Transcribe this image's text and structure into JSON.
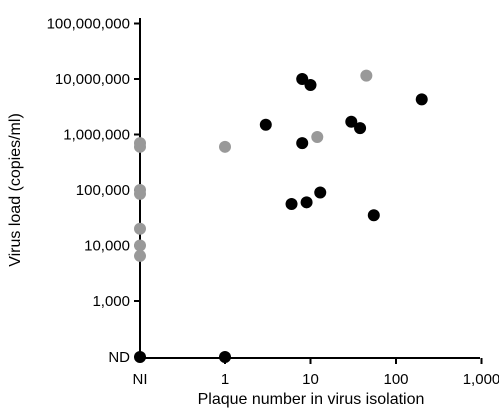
{
  "chart_data": {
    "type": "scatter",
    "xlabel": "Plaque number in virus isolation",
    "ylabel": "Virus load (copies/ml)",
    "x_scale": "log",
    "y_scale": "log",
    "x_ticks": [
      {
        "label": "NI",
        "value": "NI"
      },
      {
        "label": "1",
        "value": 1
      },
      {
        "label": "10",
        "value": 10
      },
      {
        "label": "100",
        "value": 100
      },
      {
        "label": "1,000",
        "value": 1000
      }
    ],
    "y_ticks": [
      {
        "label": "ND",
        "value": "ND"
      },
      {
        "label": "1,000",
        "value": 1000
      },
      {
        "label": "10,000",
        "value": 10000
      },
      {
        "label": "100,000",
        "value": 100000
      },
      {
        "label": "1,000,000",
        "value": 1000000
      },
      {
        "label": "10,000,000",
        "value": 10000000
      },
      {
        "label": "100,000,000",
        "value": 100000000
      }
    ],
    "colors": {
      "black": "#000000",
      "gray": "#999999"
    },
    "series": [
      {
        "color": "black",
        "points": [
          {
            "x": "NI",
            "y": "ND"
          },
          {
            "x": 1,
            "y": "ND"
          },
          {
            "x": 3,
            "y": 1500000
          },
          {
            "x": 6,
            "y": 56000
          },
          {
            "x": 8,
            "y": 10000000
          },
          {
            "x": 8,
            "y": 700000
          },
          {
            "x": 9,
            "y": 60000
          },
          {
            "x": 10,
            "y": 7800000
          },
          {
            "x": 13,
            "y": 90000
          },
          {
            "x": 30,
            "y": 1700000
          },
          {
            "x": 38,
            "y": 1300000
          },
          {
            "x": 55,
            "y": 35000
          },
          {
            "x": 200,
            "y": 4300000
          }
        ]
      },
      {
        "color": "gray",
        "points": [
          {
            "x": "NI",
            "y": 700000
          },
          {
            "x": "NI",
            "y": 600000
          },
          {
            "x": "NI",
            "y": 100000
          },
          {
            "x": "NI",
            "y": 85000
          },
          {
            "x": "NI",
            "y": 20000
          },
          {
            "x": "NI",
            "y": 10000
          },
          {
            "x": "NI",
            "y": 6500
          },
          {
            "x": 1,
            "y": 600000
          },
          {
            "x": 12,
            "y": 900000
          },
          {
            "x": 45,
            "y": 11500000
          }
        ]
      }
    ]
  }
}
